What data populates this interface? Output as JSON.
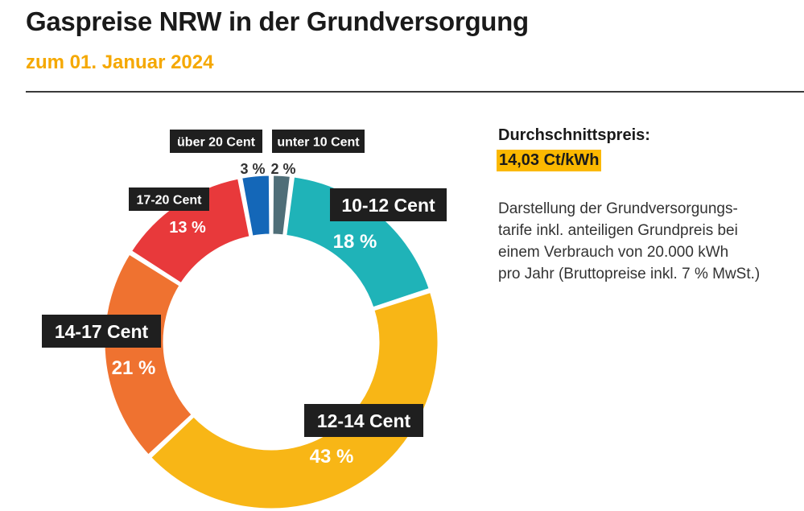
{
  "header": {
    "title": "Gaspreise NRW in der Grundversorgung",
    "subtitle": "zum 01. Januar 2024"
  },
  "sidebar": {
    "average_heading": "Durchschnittspreis:",
    "average_value": "14,03 Ct/kWh",
    "description_lines": [
      "Darstellung der Grundversorgungs-",
      "tarife inkl. anteiligen Grundpreis bei",
      "einem Verbrauch von 20.000 kWh",
      "pro Jahr (Bruttopreise inkl. 7 % MwSt.)"
    ]
  },
  "colors": {
    "accent_yellow": "#fbb800",
    "subtitle_yellow": "#f5a800",
    "label_box": "#1f1f1f"
  },
  "chart_data": {
    "type": "pie",
    "variant": "donut",
    "title": "Gaspreise NRW in der Grundversorgung",
    "slices": [
      {
        "label": "unter 10 Cent",
        "percent_label": "2 %",
        "value": 2,
        "color": "#4f6e78"
      },
      {
        "label": "10-12 Cent",
        "percent_label": "18 %",
        "value": 18,
        "color": "#1fb3b8"
      },
      {
        "label": "12-14 Cent",
        "percent_label": "43 %",
        "value": 43,
        "color": "#f8b616"
      },
      {
        "label": "14-17 Cent",
        "percent_label": "21 %",
        "value": 21,
        "color": "#ef7230"
      },
      {
        "label": "17-20 Cent",
        "percent_label": "13 %",
        "value": 13,
        "color": "#e8393b"
      },
      {
        "label": "über 20 Cent",
        "percent_label": "3 %",
        "value": 3,
        "color": "#1467b8"
      }
    ]
  }
}
